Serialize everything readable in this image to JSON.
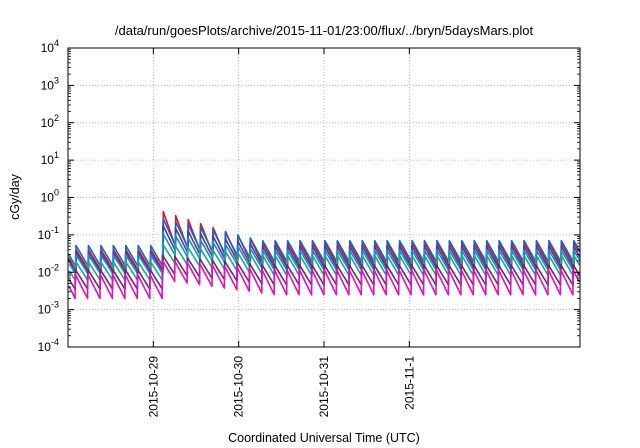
{
  "chart_data": {
    "type": "line",
    "title": "/data/run/goesPlots/archive/2015-11-01/23:00/flux/../bryn/5daysMars.plot",
    "xlabel": "Coordinated Universal Time (UTC)",
    "ylabel": "cGy/day",
    "yscale": "log",
    "ylim": [
      0.0001,
      10000
    ],
    "y_ticks": [
      {
        "base": "10",
        "exp": "-4",
        "value": 0.0001
      },
      {
        "base": "10",
        "exp": "-3",
        "value": 0.001
      },
      {
        "base": "10",
        "exp": "-2",
        "value": 0.01
      },
      {
        "base": "10",
        "exp": "-1",
        "value": 0.1
      },
      {
        "base": "10",
        "exp": "0",
        "value": 1
      },
      {
        "base": "10",
        "exp": "1",
        "value": 10
      },
      {
        "base": "10",
        "exp": "2",
        "value": 100
      },
      {
        "base": "10",
        "exp": "3",
        "value": 1000
      },
      {
        "base": "10",
        "exp": "4",
        "value": 10000
      }
    ],
    "xlim": [
      "2015-10-28 00:00",
      "2015-11-03 00:00"
    ],
    "x_ticks": [
      "2015-10-29",
      "2015-10-30",
      "2015-10-31",
      "2015-11-1"
    ],
    "x_tick_dates": [
      "2015-10-29 00:00",
      "2015-10-30 00:00",
      "2015-10-31 00:00",
      "2015-11-01 00:00"
    ],
    "grid": true,
    "legend": "none",
    "sawtooth_period_hours": 3.5,
    "event_start": "2015-10-29 04:15",
    "series": [
      {
        "color": "#e0161a",
        "peak_pre": 0.04,
        "trough_pre": 0.011,
        "peak_event": 0.48,
        "trough_event": 0.05,
        "peak_post": 0.06,
        "trough_post": 0.015
      },
      {
        "color": "#1e5fd4",
        "peak_pre": 0.052,
        "trough_pre": 0.014,
        "peak_event": 0.3,
        "trough_event": 0.055,
        "peak_post": 0.07,
        "trough_post": 0.018
      },
      {
        "color": "#444488",
        "peak_pre": 0.035,
        "trough_pre": 0.01,
        "peak_event": 0.2,
        "trough_event": 0.04,
        "peak_post": 0.05,
        "trough_post": 0.013
      },
      {
        "color": "#1a88e0",
        "peak_pre": 0.03,
        "trough_pre": 0.009,
        "peak_event": 0.12,
        "trough_event": 0.03,
        "peak_post": 0.04,
        "trough_post": 0.011
      },
      {
        "color": "#1aa898",
        "peak_pre": 0.02,
        "trough_pre": 0.006,
        "peak_event": 0.06,
        "trough_event": 0.018,
        "peak_post": 0.03,
        "trough_post": 0.008
      },
      {
        "color": "#6a2a6a",
        "peak_pre": 0.012,
        "trough_pre": 0.0035,
        "peak_event": 0.03,
        "trough_event": 0.009,
        "peak_post": 0.016,
        "trough_post": 0.0045
      },
      {
        "color": "#e010c0",
        "peak_pre": 0.009,
        "trough_pre": 0.002,
        "peak_event": 0.022,
        "trough_event": 0.006,
        "peak_post": 0.012,
        "trough_post": 0.0025
      }
    ]
  }
}
